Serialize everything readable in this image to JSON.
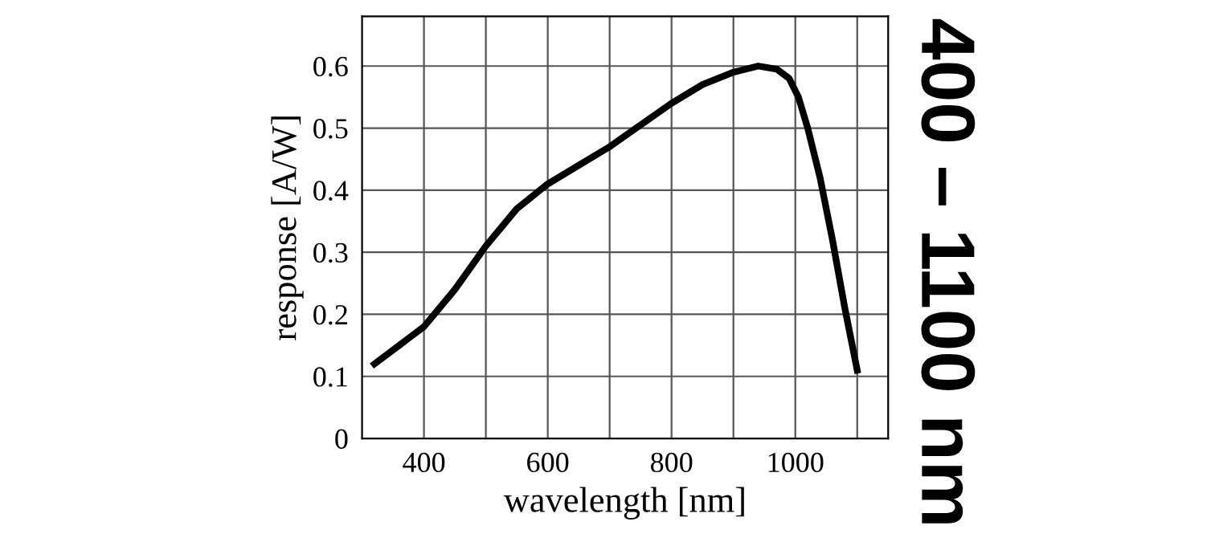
{
  "chart_data": {
    "type": "line",
    "xlabel": "wavelength [nm]",
    "ylabel": "response [A/W]",
    "x": [
      320,
      360,
      400,
      450,
      500,
      550,
      600,
      650,
      700,
      750,
      800,
      850,
      900,
      940,
      970,
      990,
      1005,
      1020,
      1040,
      1060,
      1080,
      1100
    ],
    "series": [
      {
        "color": "#000000",
        "values": [
          0.12,
          0.15,
          0.18,
          0.24,
          0.31,
          0.37,
          0.41,
          0.44,
          0.47,
          0.505,
          0.54,
          0.57,
          0.59,
          0.6,
          0.595,
          0.58,
          0.55,
          0.5,
          0.42,
          0.32,
          0.21,
          0.11
        ]
      }
    ],
    "xlim": [
      300,
      1150
    ],
    "ylim": [
      0,
      0.68
    ],
    "xticks": [
      400,
      {
        "value": 500,
        "label": null
      },
      600,
      {
        "value": 700,
        "label": null
      },
      800,
      {
        "value": 900,
        "label": null
      },
      1000,
      {
        "value": 1100,
        "label": null
      }
    ],
    "yticks": [
      0,
      0.1,
      0.2,
      0.3,
      0.4,
      0.5,
      0.6
    ],
    "grid": true,
    "marker": "none",
    "line_style": "solid",
    "annotations": [
      "400 – 1100 nm"
    ]
  }
}
